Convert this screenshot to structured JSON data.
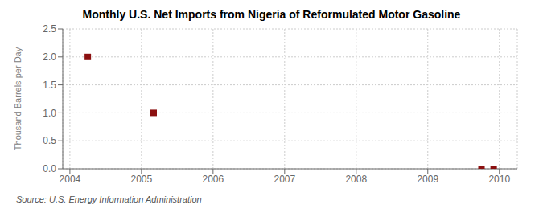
{
  "chart_data": {
    "type": "scatter",
    "title": "Monthly U.S. Net Imports from Nigeria of Reformulated Motor Gasoline",
    "ylabel": "Thousand Barrels per Day",
    "annotation": "Source: U.S. Energy Information Administration",
    "x": [
      2004.25,
      2005.17,
      2009.75,
      2009.92
    ],
    "values": [
      2.0,
      1.0,
      0.0,
      0.0
    ],
    "color": "#8b1010",
    "marker": "square",
    "xlim": [
      2003.9,
      2010.25
    ],
    "ylim": [
      0.0,
      2.5
    ],
    "xticks": [
      2004,
      2005,
      2006,
      2007,
      2008,
      2009,
      2010
    ],
    "yticks": [
      {
        "value": 0.0,
        "label": "0.0"
      },
      0.5,
      {
        "value": 1.0,
        "label": "1.0"
      },
      {
        "value": 1.5,
        "label": "1.5"
      },
      {
        "value": 2.0,
        "label": "2.0"
      },
      2.5
    ],
    "grid": true
  }
}
